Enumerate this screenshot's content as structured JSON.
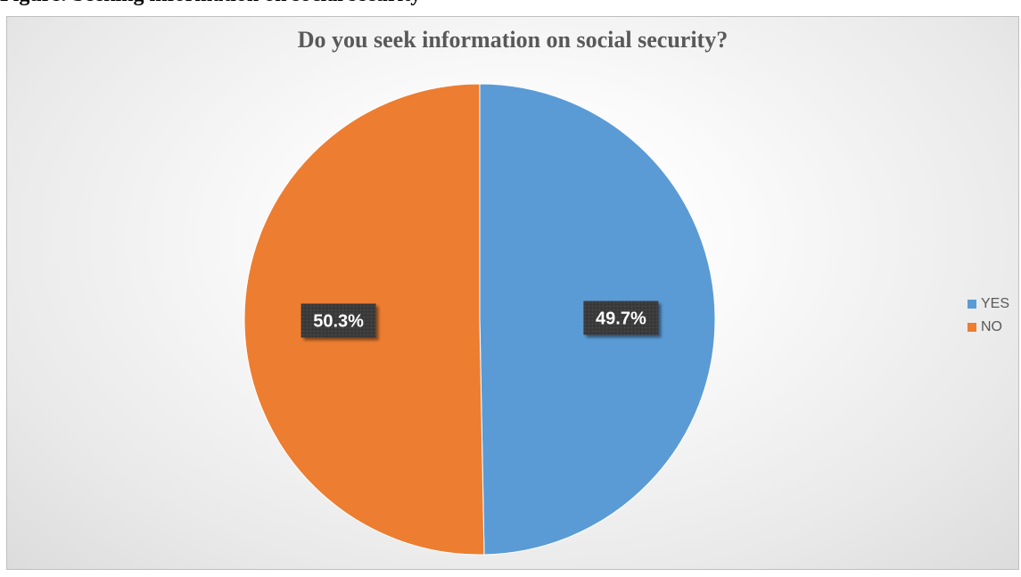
{
  "caption": "Figure: Seeking information on social security",
  "chart_data": {
    "type": "pie",
    "title": "Do you seek information on social security?",
    "categories": [
      "YES",
      "NO"
    ],
    "values": [
      49.7,
      50.3
    ],
    "data_labels": [
      "49.7%",
      "50.3%"
    ],
    "colors": [
      "#5b9bd5",
      "#ed7d31"
    ],
    "legend_position": "right",
    "start_angle": "12 o'clock, clockwise"
  }
}
